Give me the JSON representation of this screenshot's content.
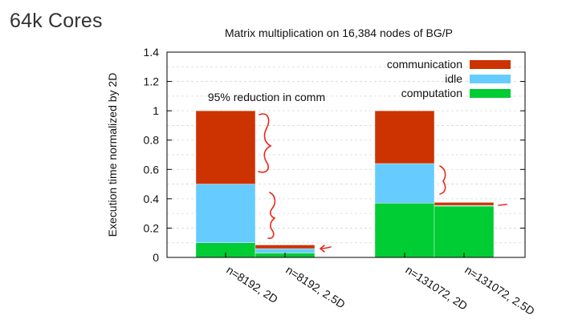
{
  "slide": {
    "title": "64k Cores"
  },
  "chart_data": {
    "type": "bar",
    "stacked": true,
    "title": "Matrix multiplication on 16,384 nodes of BG/P",
    "xlabel": "",
    "ylabel": "Execution time normalized by 2D",
    "ylim": [
      0,
      1.4
    ],
    "yticks": [
      "0",
      "0.2",
      "0.4",
      "0.6",
      "0.8",
      "1",
      "1.2",
      "1.4"
    ],
    "grid": true,
    "legend_position": "top-right",
    "categories": [
      "n=8192, 2D",
      "n=8192, 2.5D",
      "n=131072, 2D",
      "n=131072, 2.5D"
    ],
    "series": [
      {
        "name": "computation",
        "color": "#00cc33",
        "values": [
          0.1,
          0.03,
          0.37,
          0.35
        ]
      },
      {
        "name": "idle",
        "color": "#66ccff",
        "values": [
          0.4,
          0.03,
          0.27,
          0.005
        ]
      },
      {
        "name": "communication",
        "color": "#cc3300",
        "values": [
          0.5,
          0.025,
          0.36,
          0.02
        ]
      }
    ],
    "legend_order": [
      "communication",
      "idle",
      "computation"
    ],
    "annotations": [
      {
        "text": "95% reduction in comm"
      }
    ]
  }
}
